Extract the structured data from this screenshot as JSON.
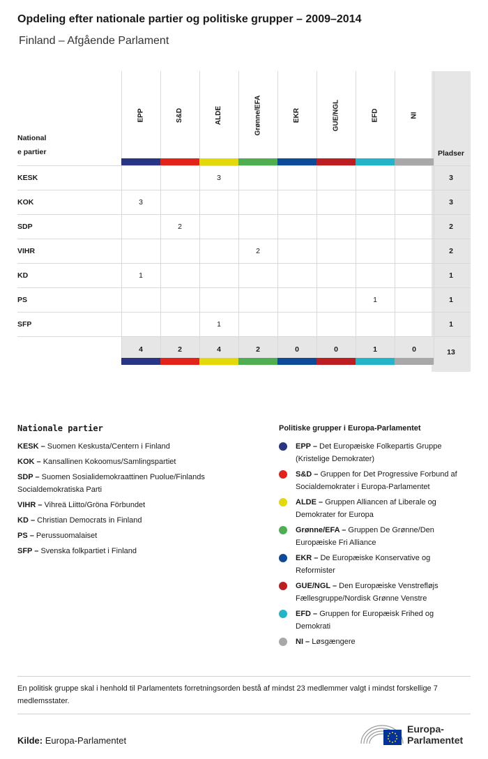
{
  "title": "Opdeling efter nationale partier og politiske grupper – 2009–2014",
  "subtitle": "Finland – Afgående Parlament",
  "table": {
    "row_header": [
      "National",
      "e partier"
    ],
    "seats_header": "Pladser",
    "groups": [
      {
        "label": "EPP",
        "color": "#283583"
      },
      {
        "label": "S&D",
        "color": "#e2231a"
      },
      {
        "label": "ALDE",
        "color": "#e3d80a"
      },
      {
        "label": "Grønne/EFA",
        "color": "#4fad52"
      },
      {
        "label": "EKR",
        "color": "#0d4a97"
      },
      {
        "label": "GUE/NGL",
        "color": "#bb1d20"
      },
      {
        "label": "EFD",
        "color": "#23b5c7"
      },
      {
        "label": "NI",
        "color": "#a8a8a8"
      }
    ],
    "rows": [
      {
        "party": "KESK",
        "values": [
          "",
          "",
          "3",
          "",
          "",
          "",
          "",
          ""
        ],
        "seats": "3"
      },
      {
        "party": "KOK",
        "values": [
          "3",
          "",
          "",
          "",
          "",
          "",
          "",
          ""
        ],
        "seats": "3"
      },
      {
        "party": "SDP",
        "values": [
          "",
          "2",
          "",
          "",
          "",
          "",
          "",
          ""
        ],
        "seats": "2"
      },
      {
        "party": "VIHR",
        "values": [
          "",
          "",
          "",
          "2",
          "",
          "",
          "",
          ""
        ],
        "seats": "2"
      },
      {
        "party": "KD",
        "values": [
          "1",
          "",
          "",
          "",
          "",
          "",
          "",
          ""
        ],
        "seats": "1"
      },
      {
        "party": "PS",
        "values": [
          "",
          "",
          "",
          "",
          "",
          "",
          "1",
          ""
        ],
        "seats": "1"
      },
      {
        "party": "SFP",
        "values": [
          "",
          "",
          "1",
          "",
          "",
          "",
          "",
          ""
        ],
        "seats": "1"
      }
    ],
    "totals": [
      "4",
      "2",
      "4",
      "2",
      "0",
      "0",
      "1",
      "0"
    ],
    "total_seats": "13"
  },
  "national_parties": {
    "heading": "Nationale partier",
    "items": [
      {
        "abbr": "KESK",
        "name": "Suomen Keskusta/Centern i Finland"
      },
      {
        "abbr": "KOK",
        "name": "Kansallinen Kokoomus/Samlingspartiet"
      },
      {
        "abbr": "SDP",
        "name": "Suomen Sosialidemokraattinen Puolue/Finlands Socialdemokratiska Parti"
      },
      {
        "abbr": "VIHR",
        "name": "Vihreä Liitto/Gröna Förbundet"
      },
      {
        "abbr": "KD",
        "name": "Christian Democrats in Finland"
      },
      {
        "abbr": "PS",
        "name": "Perussuomalaiset"
      },
      {
        "abbr": "SFP",
        "name": "Svenska folkpartiet i Finland"
      }
    ]
  },
  "political_groups": {
    "heading": "Politiske grupper i Europa-Parlamentet",
    "items": [
      {
        "abbr": "EPP",
        "name": "Det Europæiske Folkepartis Gruppe (Kristelige Demokrater)",
        "color": "#283583"
      },
      {
        "abbr": "S&D",
        "name": "Gruppen for Det Progressive Forbund af Socialdemokrater i Europa-Parlamentet",
        "color": "#e2231a"
      },
      {
        "abbr": "ALDE",
        "name": "Gruppen Alliancen af Liberale og Demokrater for Europa",
        "color": "#e3d80a"
      },
      {
        "abbr": "Grønne/EFA",
        "name": "Gruppen De Grønne/Den Europæiske Fri Alliance",
        "color": "#4fad52"
      },
      {
        "abbr": "EKR",
        "name": "De Europæiske Konservative og Reformister",
        "color": "#0d4a97"
      },
      {
        "abbr": "GUE/NGL",
        "name": "Den Europæiske Venstrefløjs Fællesgruppe/Nordisk Grønne Venstre",
        "color": "#bb1d20"
      },
      {
        "abbr": "EFD",
        "name": "Gruppen for Europæisk Frihed og Demokrati",
        "color": "#23b5c7"
      },
      {
        "abbr": "NI",
        "name": "Løsgængere",
        "color": "#a8a8a8"
      }
    ]
  },
  "note": "En politisk gruppe skal i henhold til Parlamentets forretningsorden bestå af mindst 23 medlemmer valgt i mindst forskellige 7 medlemsstater.",
  "source": {
    "label": "Kilde:",
    "value": "Europa-Parlamentet"
  },
  "logo": {
    "line1": "Europa-",
    "line2": "Parlamentet"
  }
}
